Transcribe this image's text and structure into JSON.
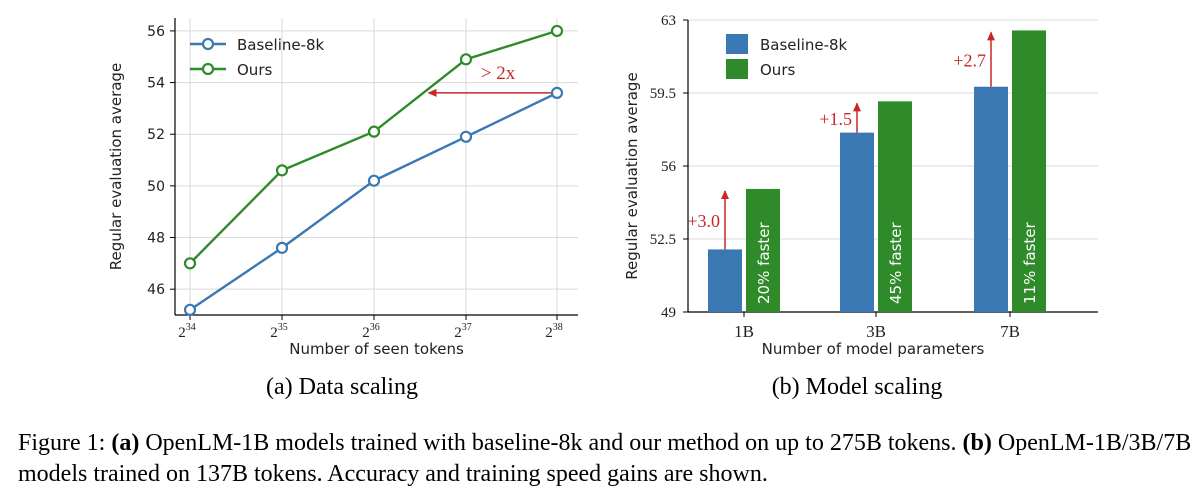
{
  "colors": {
    "baseline": "#3a78b4",
    "ours": "#2f8a2a",
    "annotation": "#c62828",
    "grid": "#d9d9d9",
    "axis": "#000000"
  },
  "chart_data": [
    {
      "type": "line",
      "title": "",
      "subtitle": "(a) Data scaling",
      "xlabel": "Number of seen tokens",
      "ylabel": "Regular evaluation average",
      "x_base": "2",
      "x_exponents": [
        "34",
        "35",
        "36",
        "37",
        "38"
      ],
      "yticks": [
        46,
        48,
        50,
        52,
        54,
        56
      ],
      "ylim": [
        45,
        56.5
      ],
      "grid": true,
      "legend_position": "top-left",
      "series": [
        {
          "name": "Baseline-8k",
          "values": [
            45.2,
            47.6,
            50.2,
            51.9,
            53.6
          ]
        },
        {
          "name": "Ours",
          "values": [
            47.0,
            50.6,
            52.1,
            54.9,
            56.0
          ]
        }
      ],
      "annotations": [
        {
          "text": "> 2x",
          "from_exponent": 38,
          "to_exponent": 36.6,
          "y": 53.6
        }
      ]
    },
    {
      "type": "bar",
      "title": "",
      "subtitle": "(b) Model scaling",
      "xlabel": "Number of model parameters",
      "ylabel": "Regular evaluation average",
      "categories": [
        "1B",
        "3B",
        "7B"
      ],
      "yticks": [
        "49",
        "52.5",
        "56",
        "59.5",
        "63"
      ],
      "ylim": [
        49,
        63
      ],
      "grid": true,
      "legend_position": "top-left",
      "series": [
        {
          "name": "Baseline-8k",
          "values": [
            52.0,
            57.6,
            59.8
          ]
        },
        {
          "name": "Ours",
          "values": [
            54.9,
            59.1,
            62.5
          ]
        }
      ],
      "gains": [
        "+3.0",
        "+1.5",
        "+2.7"
      ],
      "speed_labels": [
        "20% faster",
        "45% faster",
        "11% faster"
      ]
    }
  ],
  "caption": {
    "prefix": "Figure 1: ",
    "a_label": "(a)",
    "a_text": " OpenLM-1B models trained with baseline-8k and our method on up to 275B tokens. ",
    "b_label": "(b)",
    "b_text": " OpenLM-1B/3B/7B models trained on 137B tokens. Accuracy and training speed gains are shown."
  }
}
